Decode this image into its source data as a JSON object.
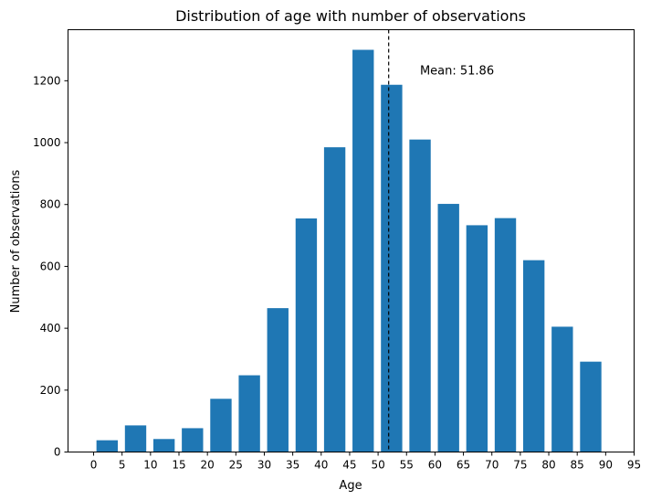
{
  "chart_data": {
    "type": "bar",
    "title": "Distribution of age with number of observations",
    "xlabel": "Age",
    "ylabel": "Number of observations",
    "bin_width": 5,
    "bins": [
      {
        "start": 0,
        "value": 38
      },
      {
        "start": 5,
        "value": 86
      },
      {
        "start": 10,
        "value": 42
      },
      {
        "start": 15,
        "value": 77
      },
      {
        "start": 20,
        "value": 172
      },
      {
        "start": 25,
        "value": 248
      },
      {
        "start": 30,
        "value": 465
      },
      {
        "start": 35,
        "value": 755
      },
      {
        "start": 40,
        "value": 985
      },
      {
        "start": 45,
        "value": 1300
      },
      {
        "start": 50,
        "value": 1187
      },
      {
        "start": 55,
        "value": 1010
      },
      {
        "start": 60,
        "value": 802
      },
      {
        "start": 65,
        "value": 733
      },
      {
        "start": 70,
        "value": 756
      },
      {
        "start": 75,
        "value": 620
      },
      {
        "start": 80,
        "value": 405
      },
      {
        "start": 85,
        "value": 292
      }
    ],
    "mean": 51.86,
    "mean_label": "Mean: 51.86",
    "xticks": [
      0,
      5,
      10,
      15,
      20,
      25,
      30,
      35,
      40,
      45,
      50,
      55,
      60,
      65,
      70,
      75,
      80,
      85,
      90,
      95
    ],
    "yticks": [
      0,
      200,
      400,
      600,
      800,
      1000,
      1200
    ],
    "xlim": [
      -4.5,
      95
    ],
    "ylim": [
      0,
      1365
    ],
    "bar_color": "#1f77b4",
    "grid": false,
    "legend": false
  }
}
